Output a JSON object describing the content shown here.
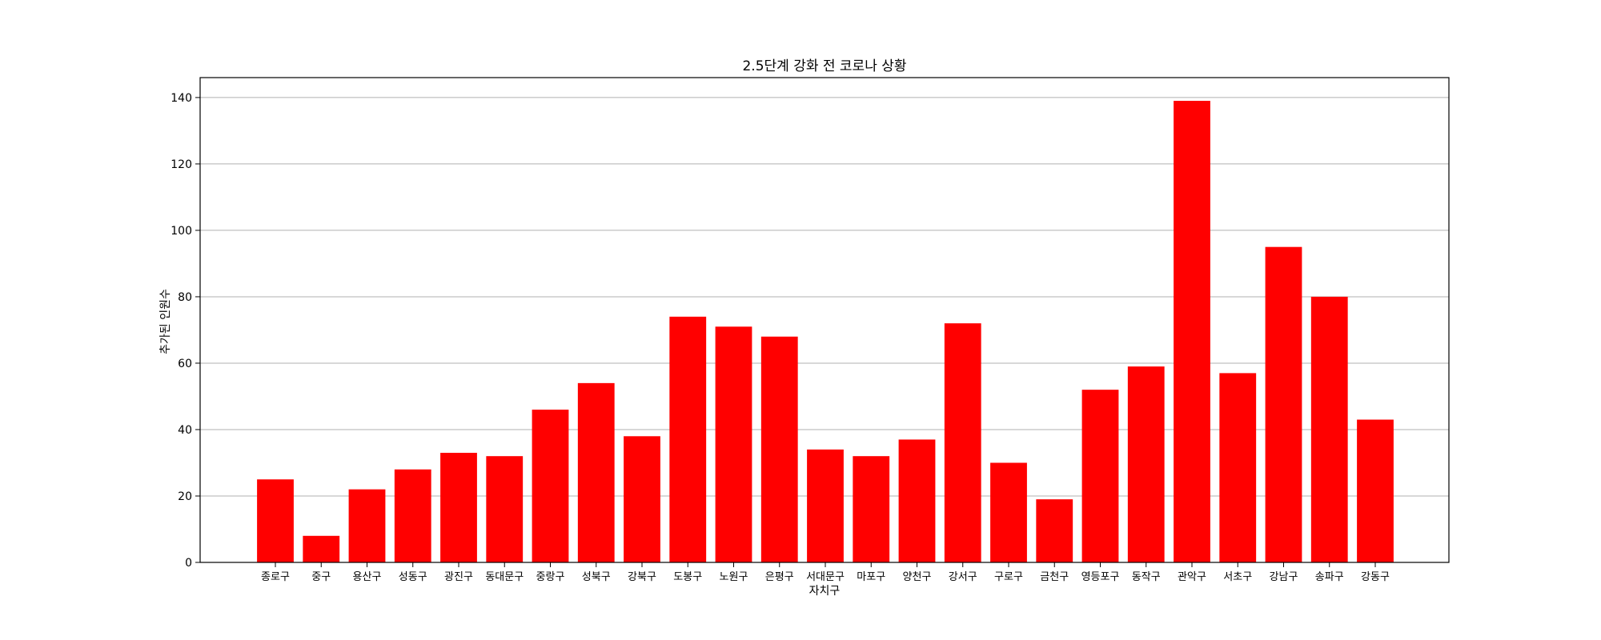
{
  "chart_data": {
    "type": "bar",
    "title": "2.5단계 강화 전 코로나 상황",
    "xlabel": "자치구",
    "ylabel": "추가된 인원수",
    "categories": [
      "종로구",
      "중구",
      "용산구",
      "성동구",
      "광진구",
      "동대문구",
      "중랑구",
      "성북구",
      "강북구",
      "도봉구",
      "노원구",
      "은평구",
      "서대문구",
      "마포구",
      "양천구",
      "강서구",
      "구로구",
      "금천구",
      "영등포구",
      "동작구",
      "관악구",
      "서초구",
      "강남구",
      "송파구",
      "강동구"
    ],
    "values": [
      25,
      8,
      22,
      28,
      33,
      32,
      46,
      54,
      38,
      74,
      71,
      68,
      34,
      32,
      37,
      72,
      30,
      19,
      52,
      59,
      139,
      57,
      95,
      80,
      43
    ],
    "ylim": [
      0,
      146
    ],
    "yticks": [
      0,
      20,
      40,
      60,
      80,
      100,
      120,
      140
    ],
    "grid": "y",
    "bar_color": "#ff0000"
  }
}
